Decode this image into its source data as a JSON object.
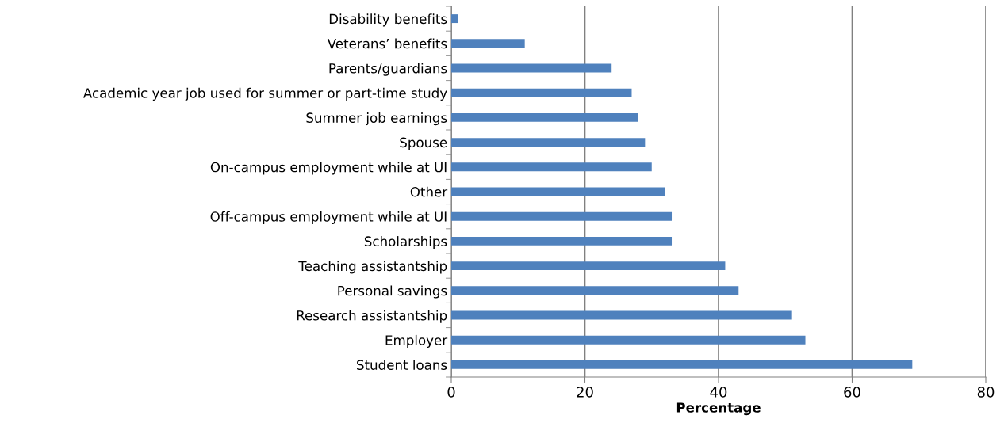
{
  "chart_data": {
    "type": "bar",
    "orientation": "horizontal",
    "xlabel": "Percentage",
    "categories": [
      "Disability benefits",
      "Veterans’ benefits",
      "Parents/guardians",
      "Academic year job used for summer or part-time study",
      "Summer job earnings",
      "Spouse",
      "On-campus employment while at UI",
      "Other",
      "Off-campus employment while at UI",
      "Scholarships",
      "Teaching assistantship",
      "Personal savings",
      "Research assistantship",
      "Employer",
      "Student loans"
    ],
    "values": [
      1,
      11,
      24,
      27,
      28,
      29,
      30,
      32,
      33,
      33,
      41,
      43,
      51,
      53,
      69
    ],
    "color": "#4f81bd",
    "xlim": [
      0,
      80
    ],
    "xticks": [
      0,
      20,
      40,
      60,
      80
    ],
    "grid": "x"
  }
}
